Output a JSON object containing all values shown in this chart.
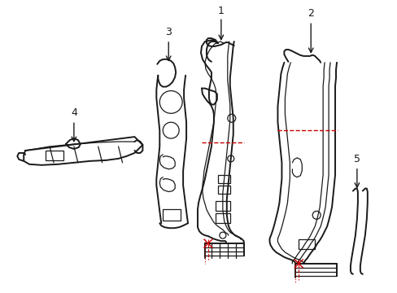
{
  "background_color": "#ffffff",
  "line_color": "#1a1a1a",
  "red_dashed_color": "#cc0000",
  "figsize": [
    4.89,
    3.6
  ],
  "dpi": 100
}
